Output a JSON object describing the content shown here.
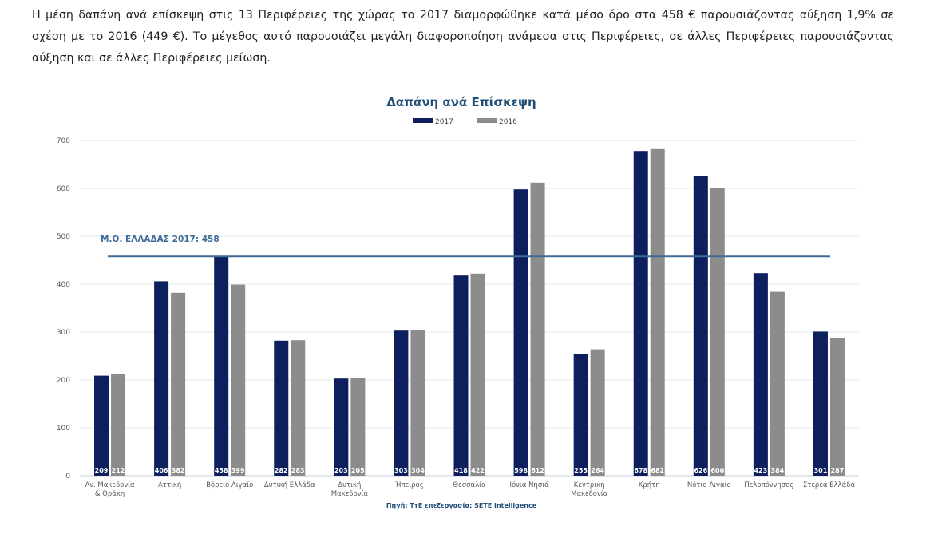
{
  "intro_text": "Η μέση δαπάνη ανά επίσκεψη στις 13 Περιφέρειες της χώρας το 2017 διαμορφώθηκε κατά μέσο όρο στα 458 € παρουσιάζοντας αύξηση 1,9% σε σχέση με το 2016 (449 €). Το μέγεθος αυτό παρουσιάζει μεγάλη διαφοροποίηση ανάμεσα στις Περιφέρειες, σε άλλες Περιφέρειες παρουσιάζοντας αύξηση και σε άλλες Περιφέρειες μείωση.",
  "colors": {
    "series_2017": "#0d1f5c",
    "series_2016": "#8c8c8c",
    "reference_line": "#3f6c97",
    "title": "#1f4e79",
    "grid": "#e3e8ef",
    "tick": "#595959"
  },
  "chart_data": {
    "type": "bar",
    "title": "Δαπάνη ανά Επίσκεψη",
    "source": "Πηγή: ΤτΕ επεξεργασία: SETE Intelligence",
    "legend_position": "top-center",
    "grid": true,
    "ylim": [
      0,
      700
    ],
    "yticks": [
      0,
      100,
      200,
      300,
      400,
      500,
      600,
      700
    ],
    "categories": [
      [
        "Αν. Μακεδονία",
        "& Θράκη"
      ],
      [
        "Αττική"
      ],
      [
        "Βόρειο Αιγαίο"
      ],
      [
        "Δυτική Ελλάδα"
      ],
      [
        "Δυτική",
        "Μακεδονία"
      ],
      [
        "Ήπειρος"
      ],
      [
        "Θεσσαλία"
      ],
      [
        "Ιόνια Νησιά"
      ],
      [
        "Κεντρική",
        "Μακεδονία"
      ],
      [
        "Κρήτη"
      ],
      [
        "Νότιο Αιγαίο"
      ],
      [
        "Πελοπόννησος"
      ],
      [
        "Στερεά Ελλάδα"
      ]
    ],
    "series": [
      {
        "name": "2017",
        "values": [
          209,
          406,
          458,
          282,
          203,
          303,
          418,
          598,
          255,
          678,
          626,
          423,
          301
        ]
      },
      {
        "name": "2016",
        "values": [
          212,
          382,
          399,
          283,
          205,
          304,
          422,
          612,
          264,
          682,
          600,
          384,
          287
        ]
      }
    ],
    "reference_line": {
      "label": "Μ.Ο. ΕΛΛΑΔΑΣ 2017: 458",
      "value": 458
    }
  }
}
